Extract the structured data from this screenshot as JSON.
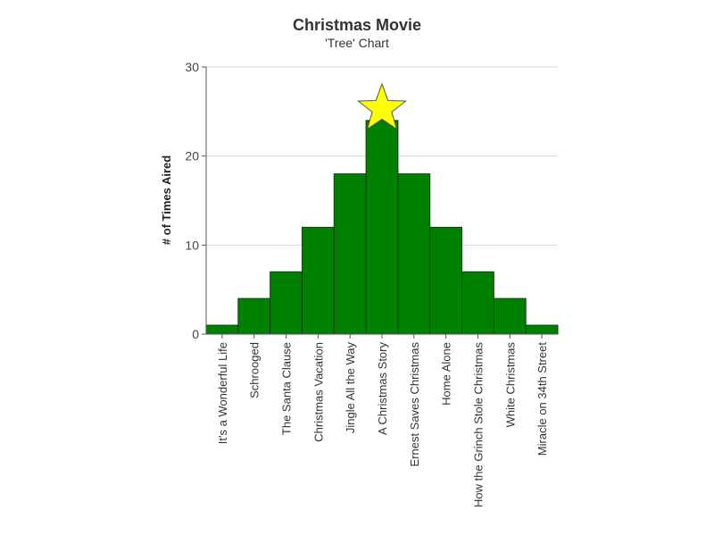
{
  "chart_data": {
    "type": "bar",
    "title": "Christmas Movie",
    "subtitle": "'Tree' Chart",
    "xlabel": "",
    "ylabel": "# of Times Aired",
    "categories": [
      "It's a Wonderful Life",
      "Schrooged",
      "The Santa Clause",
      "Christmas Vacation",
      "Jingle All the Way",
      "A Christmas Story",
      "Ernest Saves Christmas",
      "Home Alone",
      "How the Grinch Stole Christmas",
      "White Christmas",
      "Miracle on 34th Street"
    ],
    "values": [
      1,
      4,
      7,
      12,
      18,
      24,
      18,
      12,
      7,
      4,
      1
    ],
    "ylim": [
      0,
      30
    ],
    "yticks": [
      0,
      10,
      20,
      30
    ],
    "grid": true,
    "legend": "none",
    "bar_color": "#008000",
    "bar_edge_color": "#1a3a1a",
    "star": {
      "category": "A Christmas Story",
      "color": "#ffff00",
      "edge_color": "#555555"
    }
  }
}
